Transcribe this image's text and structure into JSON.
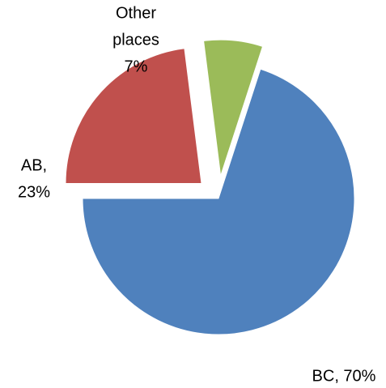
{
  "chart_data": {
    "type": "pie",
    "labels": [
      [
        "BC, 70%"
      ],
      [
        "AB,",
        "23%"
      ],
      [
        "Other",
        "places",
        "7%"
      ]
    ],
    "values": [
      70,
      23,
      7
    ],
    "colors": [
      "#4f81bd",
      "#c0504d",
      "#9bbb59"
    ],
    "exploded": [
      false,
      true,
      true
    ]
  }
}
